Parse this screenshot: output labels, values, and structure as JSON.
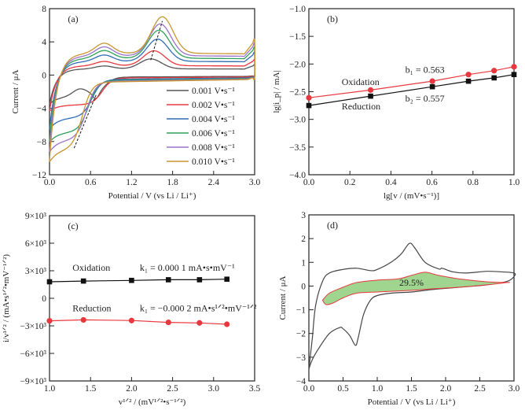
{
  "chart_data": [
    {
      "id": "a",
      "type": "line",
      "panel_label": "(a)",
      "xlabel": "Potential / V (vs Li / Li⁺)",
      "ylabel": "Current / μA",
      "xlim": [
        0.0,
        3.0
      ],
      "ylim": [
        -12,
        8
      ],
      "xticks": [
        0.0,
        0.6,
        1.2,
        1.8,
        2.4,
        3.0
      ],
      "xtick_labels": [
        "0.0",
        "0.6",
        "1.2",
        "1.8",
        "2.4",
        "3.0"
      ],
      "yticks": [
        -12,
        -8,
        -4,
        0,
        4,
        8
      ],
      "ytick_labels": [
        "−12",
        "−8",
        "−4",
        "0",
        "4",
        "8"
      ],
      "legend_position": "lower-right",
      "series": [
        {
          "name": "0.001 V•s⁻¹",
          "color": "#555555",
          "scale": 1.0,
          "ox_peak": 1.8,
          "red_peak": -2.5,
          "ox_peak_v": 1.48,
          "red_peak_v": 0.68,
          "start": -3.5
        },
        {
          "name": "0.002 V•s⁻¹",
          "color": "#e8383d",
          "scale": 1.5,
          "ox_peak": 2.7,
          "red_peak": -3.5,
          "ox_peak_v": 1.53,
          "red_peak_v": 0.65,
          "start": -4.3
        },
        {
          "name": "0.004 V•s⁻¹",
          "color": "#2f6db5",
          "scale": 2.2,
          "ox_peak": 4.0,
          "red_peak": -5.0,
          "ox_peak_v": 1.58,
          "red_peak_v": 0.5,
          "start": -6.5
        },
        {
          "name": "0.006 V•s⁻¹",
          "color": "#2fa05a",
          "scale": 2.7,
          "ox_peak": 5.0,
          "red_peak": -6.7,
          "ox_peak_v": 1.6,
          "red_peak_v": 0.45,
          "start": -8.0
        },
        {
          "name": "0.008 V•s⁻¹",
          "color": "#9b72c9",
          "scale": 3.1,
          "ox_peak": 5.7,
          "red_peak": -7.6,
          "ox_peak_v": 1.62,
          "red_peak_v": 0.42,
          "start": -9.2
        },
        {
          "name": "0.010 V•s⁻¹",
          "color": "#c9962e",
          "scale": 3.5,
          "ox_peak": 6.5,
          "red_peak": -8.7,
          "ox_peak_v": 1.65,
          "red_peak_v": 0.36,
          "start": -10.4
        }
      ]
    },
    {
      "id": "b",
      "type": "line",
      "panel_label": "(b)",
      "xlabel": "lg[v / (mV•s⁻¹)]",
      "ylabel": "lg|i_p| / mA|",
      "xlim": [
        0.0,
        1.0
      ],
      "ylim": [
        -4.0,
        -1.0
      ],
      "xticks": [
        0.0,
        0.2,
        0.4,
        0.6,
        0.8,
        1.0
      ],
      "xtick_labels": [
        "0.0",
        "0.2",
        "0.4",
        "0.6",
        "0.8",
        "1.0"
      ],
      "yticks": [
        -4.0,
        -3.5,
        -3.0,
        -2.5,
        -2.0,
        -1.5,
        -1.0
      ],
      "ytick_labels": [
        "−4.0",
        "−3.5",
        "−3.0",
        "−2.5",
        "−2.0",
        "−1.5",
        "−1.0"
      ],
      "series": [
        {
          "name": "Oxidation",
          "color": "#e8383d",
          "marker": "circle",
          "x": [
            0.0,
            0.301,
            0.602,
            0.778,
            0.903,
            1.0
          ],
          "y": [
            -2.61,
            -2.47,
            -2.31,
            -2.19,
            -2.12,
            -2.05
          ]
        },
        {
          "name": "Reduction",
          "color": "#111111",
          "marker": "square",
          "x": [
            0.0,
            0.301,
            0.602,
            0.778,
            0.903,
            1.0
          ],
          "y": [
            -2.75,
            -2.58,
            -2.41,
            -2.31,
            -2.25,
            -2.19
          ]
        }
      ],
      "annotations": [
        {
          "text": "Oxidation",
          "x": 0.16,
          "y": -2.38
        },
        {
          "text": "Reduction",
          "x": 0.16,
          "y": -2.82
        },
        {
          "text": "b₁ = 0.563",
          "x": 0.47,
          "y": -2.16
        },
        {
          "text": "b₂ = 0.557",
          "x": 0.47,
          "y": -2.68
        }
      ]
    },
    {
      "id": "c",
      "type": "line",
      "panel_label": "(c)",
      "xlabel": "v¹ᐟ² / (mV¹ᐟ²•s⁻¹ᐟ²)",
      "ylabel": "i/v¹ᐟ² / (mA•s¹ᐟ²•mV⁻¹ᐟ²)",
      "xlim": [
        1.0,
        3.5
      ],
      "ylim": [
        -9000,
        9000
      ],
      "xticks": [
        1.0,
        1.5,
        2.0,
        2.5,
        3.0,
        3.5
      ],
      "xtick_labels": [
        "1.0",
        "1.5",
        "2.0",
        "2.5",
        "3.0",
        "3.5"
      ],
      "yticks": [
        -9000,
        -6000,
        -3000,
        0,
        3000,
        6000,
        9000
      ],
      "ytick_labels": [
        "−9×10³",
        "−6×10³",
        "−3×10³",
        "0",
        "3×10³",
        "6×10³",
        "9×10³"
      ],
      "series": [
        {
          "name": "Oxidation",
          "color": "#111111",
          "marker": "square",
          "x": [
            1.0,
            1.414,
            2.0,
            2.449,
            2.828,
            3.162
          ],
          "y": [
            1800,
            1880,
            1950,
            2020,
            2020,
            2080
          ]
        },
        {
          "name": "Reduction",
          "color": "#e8383d",
          "marker": "circle",
          "x": [
            1.0,
            1.414,
            2.0,
            2.449,
            2.828,
            3.162
          ],
          "y": [
            -2450,
            -2350,
            -2420,
            -2620,
            -2680,
            -2830
          ]
        }
      ],
      "annotations": [
        {
          "text": "Oxidation",
          "x": 1.28,
          "y": 3000
        },
        {
          "text": "Reduction",
          "x": 1.28,
          "y": -1400
        },
        {
          "text": "k₁ = 0.000 1 mA•s•mV⁻¹",
          "x": 2.1,
          "y": 3000
        },
        {
          "text": "k₁ = −0.000 2 mA•s¹ᐟ²•mV⁻¹ᐟ²",
          "x": 2.1,
          "y": -1400
        }
      ]
    },
    {
      "id": "d",
      "type": "area",
      "panel_label": "(d)",
      "xlabel": "Potential / V (vs Li / Li⁺)",
      "ylabel": "Current / μA",
      "xlim": [
        0.0,
        3.0
      ],
      "ylim": [
        -4,
        3
      ],
      "xticks": [
        0.0,
        0.5,
        1.0,
        1.5,
        2.0,
        2.5,
        3.0
      ],
      "xtick_labels": [
        "0.0",
        "0.5",
        "1.0",
        "1.5",
        "2.0",
        "2.5",
        "3.0"
      ],
      "yticks": [
        -4,
        -3,
        -2,
        -1,
        0,
        1,
        2,
        3
      ],
      "ytick_labels": [
        "−4",
        "−3",
        "−2",
        "−1",
        "0",
        "1",
        "2",
        "3"
      ],
      "cv_color": "#444444",
      "fill_color": "#9fd58f",
      "fill_edge_color": "#e8383d",
      "capacitive_fraction_label": "29.5%",
      "cv_upper": [
        [
          0.0,
          -3.5
        ],
        [
          0.05,
          -2.2
        ],
        [
          0.1,
          -0.8
        ],
        [
          0.2,
          0.2
        ],
        [
          0.3,
          0.55
        ],
        [
          0.5,
          0.7
        ],
        [
          0.7,
          0.75
        ],
        [
          0.9,
          0.65
        ],
        [
          1.0,
          0.7
        ],
        [
          1.2,
          1.0
        ],
        [
          1.35,
          1.35
        ],
        [
          1.47,
          1.8
        ],
        [
          1.55,
          1.6
        ],
        [
          1.7,
          1.0
        ],
        [
          1.9,
          0.72
        ],
        [
          1.95,
          0.75
        ],
        [
          2.1,
          0.6
        ],
        [
          2.3,
          0.55
        ],
        [
          2.6,
          0.62
        ],
        [
          2.8,
          0.6
        ],
        [
          3.0,
          0.55
        ]
      ],
      "cv_lower": [
        [
          3.0,
          0.4
        ],
        [
          2.9,
          0.2
        ],
        [
          2.6,
          0.05
        ],
        [
          2.2,
          -0.05
        ],
        [
          1.8,
          -0.15
        ],
        [
          1.5,
          -0.25
        ],
        [
          1.2,
          -0.3
        ],
        [
          1.0,
          -0.4
        ],
        [
          0.9,
          -0.6
        ],
        [
          0.8,
          -1.2
        ],
        [
          0.72,
          -2.2
        ],
        [
          0.68,
          -2.5
        ],
        [
          0.6,
          -2.1
        ],
        [
          0.5,
          -1.8
        ],
        [
          0.45,
          -1.75
        ],
        [
          0.3,
          -2.0
        ],
        [
          0.15,
          -2.6
        ],
        [
          0.05,
          -3.1
        ],
        [
          0.0,
          -3.5
        ]
      ],
      "fill_upper": [
        [
          0.2,
          -0.6
        ],
        [
          0.3,
          -0.3
        ],
        [
          0.5,
          -0.05
        ],
        [
          0.7,
          0.15
        ],
        [
          1.0,
          0.25
        ],
        [
          1.3,
          0.3
        ],
        [
          1.5,
          0.45
        ],
        [
          1.7,
          0.58
        ],
        [
          1.9,
          0.45
        ],
        [
          2.2,
          0.3
        ],
        [
          2.6,
          0.18
        ],
        [
          2.9,
          0.15
        ]
      ],
      "fill_lower": [
        [
          2.9,
          0.15
        ],
        [
          2.6,
          0.05
        ],
        [
          2.2,
          -0.05
        ],
        [
          1.8,
          -0.12
        ],
        [
          1.5,
          -0.18
        ],
        [
          1.2,
          -0.22
        ],
        [
          1.0,
          -0.25
        ],
        [
          0.7,
          -0.3
        ],
        [
          0.5,
          -0.5
        ],
        [
          0.35,
          -0.72
        ],
        [
          0.25,
          -0.78
        ],
        [
          0.2,
          -0.6
        ]
      ]
    }
  ]
}
